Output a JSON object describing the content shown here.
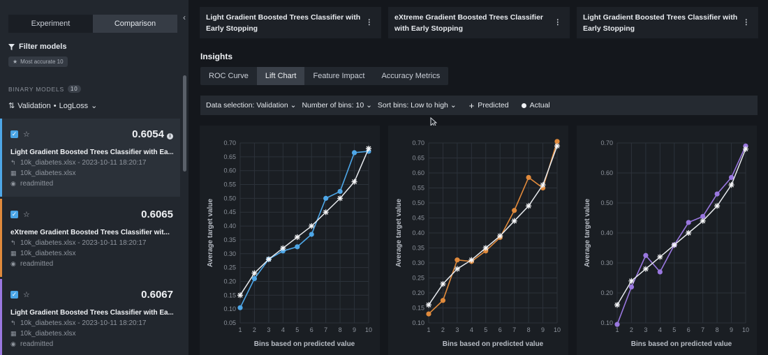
{
  "sidebar": {
    "tabs": [
      "Experiment",
      "Comparison"
    ],
    "active_tab": 1,
    "filter_label": "Filter models",
    "chip_label": "Most accurate 10",
    "section_label": "BINARY MODELS",
    "section_count": "10",
    "sort_label": "Validation",
    "sort_metric": "LogLoss",
    "models": [
      {
        "score": "0.6054",
        "name": "Light Gradient Boosted Trees Classifier with Ea...",
        "source": "10k_diabetes.xlsx - 2023-10-11 18:20:17",
        "dataset": "10k_diabetes.xlsx",
        "target": "readmitted",
        "color": "#4ea7e8"
      },
      {
        "score": "0.6065",
        "name": "eXtreme Gradient Boosted Trees Classifier wit...",
        "source": "10k_diabetes.xlsx - 2023-10-11 18:20:17",
        "dataset": "10k_diabetes.xlsx",
        "target": "readmitted",
        "color": "#e08a3c"
      },
      {
        "score": "0.6067",
        "name": "Light Gradient Boosted Trees Classifier with Ea...",
        "source": "10k_diabetes.xlsx - 2023-10-11 18:20:17",
        "dataset": "10k_diabetes.xlsx",
        "target": "readmitted",
        "color": "#9a78e0"
      }
    ]
  },
  "headers": [
    "Light Gradient Boosted Trees Classifier with Early Stopping",
    "eXtreme Gradient Boosted Trees Classifier with Early Stopping",
    "Light Gradient Boosted Trees Classifier with Early Stopping"
  ],
  "insights": {
    "title": "Insights",
    "tabs": [
      "ROC Curve",
      "Lift Chart",
      "Feature Impact",
      "Accuracy Metrics"
    ],
    "active_tab": 1
  },
  "controls": {
    "data_selection": "Data selection: Validation",
    "bins": "Number of bins: 10",
    "sort": "Sort bins: Low to high",
    "legend_predicted": "Predicted",
    "legend_actual": "Actual"
  },
  "chart_data": [
    {
      "type": "line",
      "xlabel": "Bins based on predicted value",
      "ylabel": "Average target value",
      "x": [
        1,
        2,
        3,
        4,
        5,
        6,
        7,
        8,
        9,
        10
      ],
      "ylim": [
        0.05,
        0.7
      ],
      "yticks": [
        0.05,
        0.1,
        0.15,
        0.2,
        0.25,
        0.3,
        0.35,
        0.4,
        0.45,
        0.5,
        0.55,
        0.6,
        0.65,
        0.7
      ],
      "color": "#4ea7e8",
      "series": [
        {
          "name": "Predicted",
          "values": [
            0.15,
            0.23,
            0.28,
            0.32,
            0.36,
            0.4,
            0.45,
            0.5,
            0.56,
            0.68
          ]
        },
        {
          "name": "Actual",
          "values": [
            0.105,
            0.21,
            0.28,
            0.31,
            0.325,
            0.37,
            0.5,
            0.525,
            0.665,
            0.67
          ]
        }
      ]
    },
    {
      "type": "line",
      "xlabel": "Bins based on predicted value",
      "ylabel": "Average target value",
      "x": [
        1,
        2,
        3,
        4,
        5,
        6,
        7,
        8,
        9,
        10
      ],
      "ylim": [
        0.1,
        0.7
      ],
      "yticks": [
        0.1,
        0.15,
        0.2,
        0.25,
        0.3,
        0.35,
        0.4,
        0.45,
        0.5,
        0.55,
        0.6,
        0.65,
        0.7
      ],
      "color": "#e08a3c",
      "series": [
        {
          "name": "Predicted",
          "values": [
            0.16,
            0.23,
            0.28,
            0.31,
            0.35,
            0.39,
            0.44,
            0.49,
            0.56,
            0.69
          ]
        },
        {
          "name": "Actual",
          "values": [
            0.13,
            0.175,
            0.31,
            0.305,
            0.34,
            0.385,
            0.475,
            0.585,
            0.55,
            0.705
          ]
        }
      ]
    },
    {
      "type": "line",
      "xlabel": "Bins based on predicted value",
      "ylabel": "Average target value",
      "x": [
        1,
        2,
        3,
        4,
        5,
        6,
        7,
        8,
        9,
        10
      ],
      "ylim": [
        0.1,
        0.7
      ],
      "yticks": [
        0.1,
        0.2,
        0.3,
        0.4,
        0.5,
        0.6,
        0.7
      ],
      "color": "#9a78e0",
      "series": [
        {
          "name": "Predicted",
          "values": [
            0.16,
            0.24,
            0.28,
            0.32,
            0.36,
            0.4,
            0.44,
            0.49,
            0.56,
            0.68
          ]
        },
        {
          "name": "Actual",
          "values": [
            0.095,
            0.22,
            0.325,
            0.27,
            0.36,
            0.435,
            0.455,
            0.53,
            0.585,
            0.69
          ]
        }
      ]
    }
  ]
}
